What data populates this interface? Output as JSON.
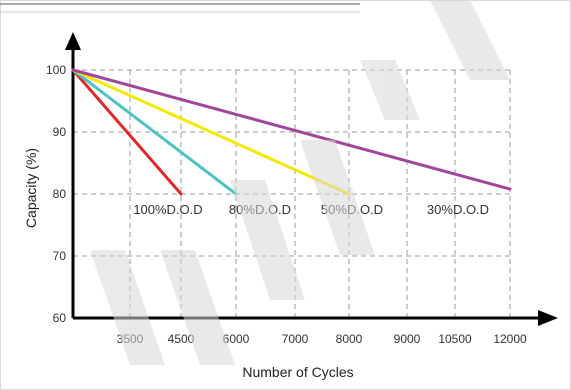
{
  "chart_data": {
    "type": "line",
    "title": "",
    "xlabel": "Number of Cycles",
    "ylabel": "Capacity (%)",
    "x_ticks": [
      "3500",
      "4500",
      "6000",
      "7000",
      "8000",
      "9000",
      "10500",
      "12000"
    ],
    "y_ticks": [
      100,
      90,
      80,
      70,
      60
    ],
    "ylim": [
      60,
      100
    ],
    "grid": true,
    "series": [
      {
        "color": "#e32629",
        "points": [
          [
            0,
            100
          ],
          [
            4500,
            80
          ]
        ]
      },
      {
        "color": "#4cc3c7",
        "points": [
          [
            0,
            100
          ],
          [
            6000,
            80
          ]
        ]
      },
      {
        "color": "#f5e900",
        "points": [
          [
            0,
            100
          ],
          [
            8000,
            80
          ]
        ]
      },
      {
        "color": "#a1479b",
        "points": [
          [
            0,
            100
          ],
          [
            12000,
            80.8
          ]
        ]
      }
    ],
    "annotations": [
      "100%D.O.D",
      "80%D.O.D",
      "50%D.O.D",
      "30%D.O.D"
    ]
  }
}
